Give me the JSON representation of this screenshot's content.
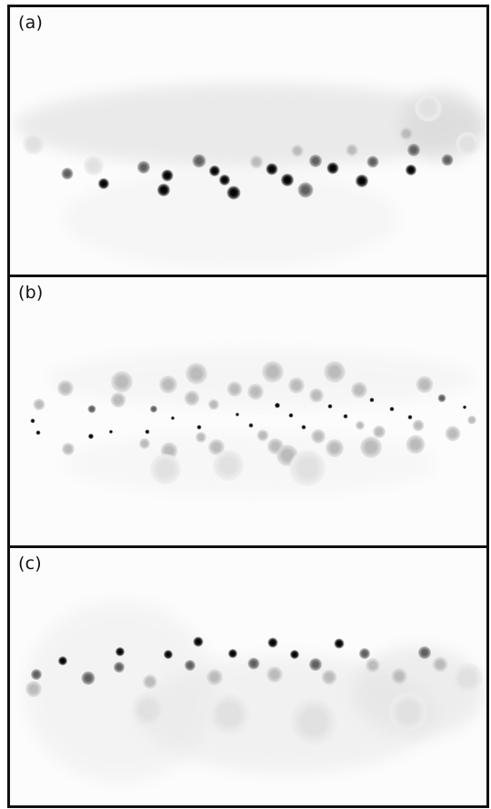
{
  "figure": {
    "panels": [
      {
        "label": "(a)"
      },
      {
        "label": "(b)"
      },
      {
        "label": "(c)"
      }
    ]
  },
  "colors": {
    "background": "#fcfcfc",
    "border": "#111111",
    "dark_spot": "#050505",
    "mid_spot": "#606060",
    "light_spot": "#bbbbbb"
  }
}
